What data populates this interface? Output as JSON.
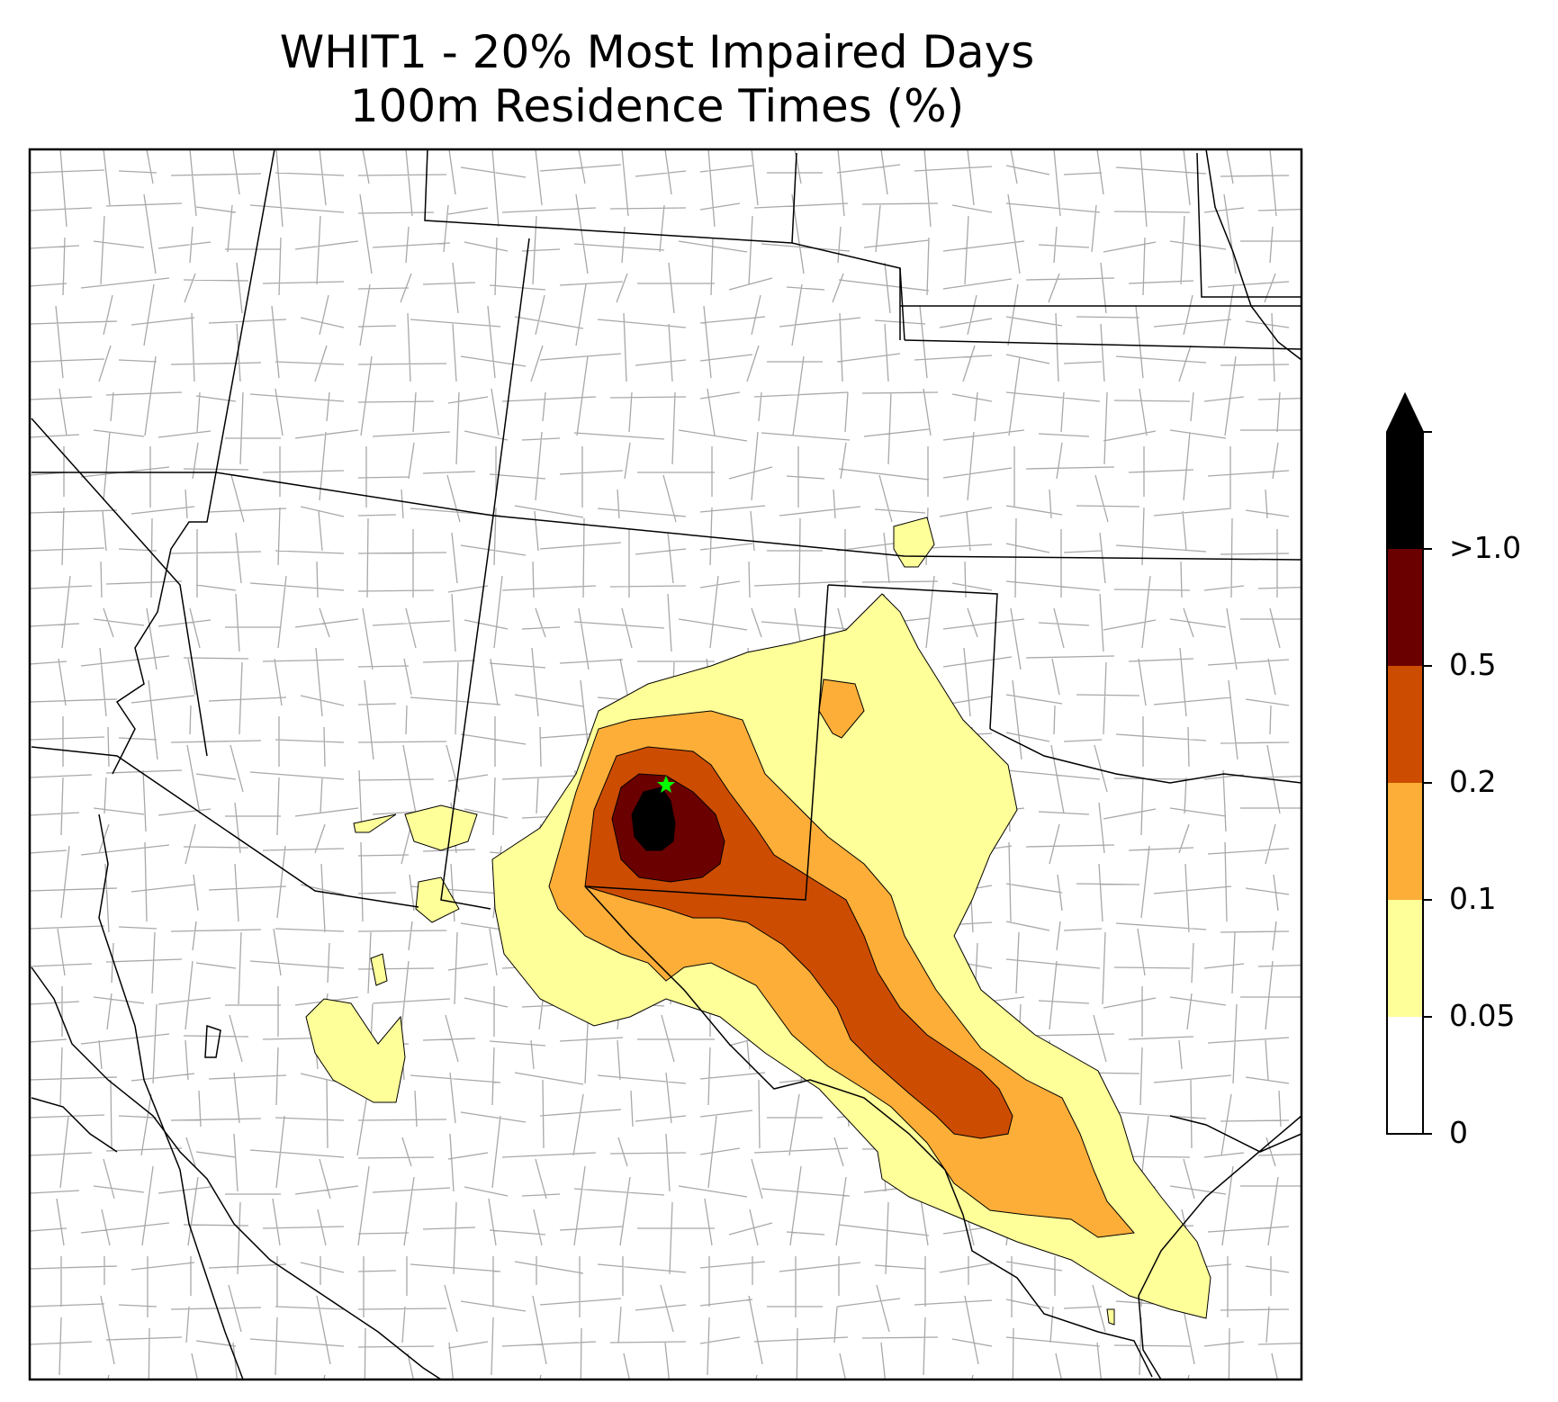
{
  "title": {
    "line1": "WHIT1 - 20% Most Impaired Days",
    "line2": "100m Residence Times (%)"
  },
  "colorbar": {
    "levels": [
      {
        "label": "0",
        "color": "#ffffff"
      },
      {
        "label": "0.05",
        "color": "#ffff99"
      },
      {
        "label": "0.1",
        "color": "#fdae38"
      },
      {
        "label": "0.2",
        "color": "#cc4c02"
      },
      {
        "label": "0.5",
        "color": "#6b0000"
      },
      {
        "label": ">1.0",
        "color": "#000000"
      }
    ],
    "extend_color": "#000000"
  },
  "site_marker": {
    "symbol": "star",
    "color": "#00ff00"
  },
  "colors": {
    "state_border": "#000000",
    "county_border": "#a8a8a8",
    "frame": "#000000"
  }
}
